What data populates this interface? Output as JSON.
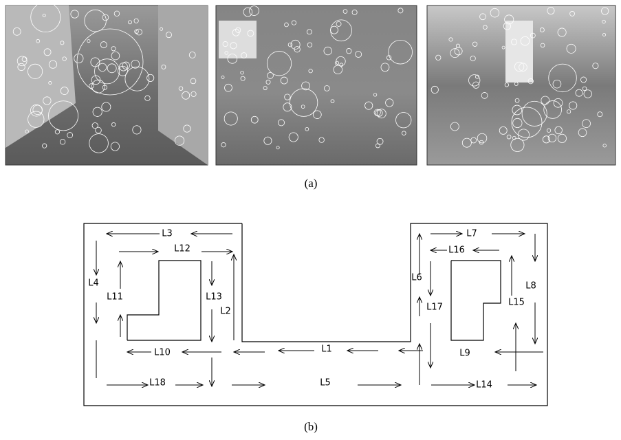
{
  "figure_a": {
    "caption": "(a)"
  },
  "figure_b": {
    "caption": "(b)",
    "labels": [
      "L1",
      "L2",
      "L3",
      "L4",
      "L5",
      "L6",
      "L7",
      "L8",
      "L9",
      "L10",
      "L11",
      "L12",
      "L13",
      "L14",
      "L15",
      "L16",
      "L17",
      "L18"
    ]
  }
}
